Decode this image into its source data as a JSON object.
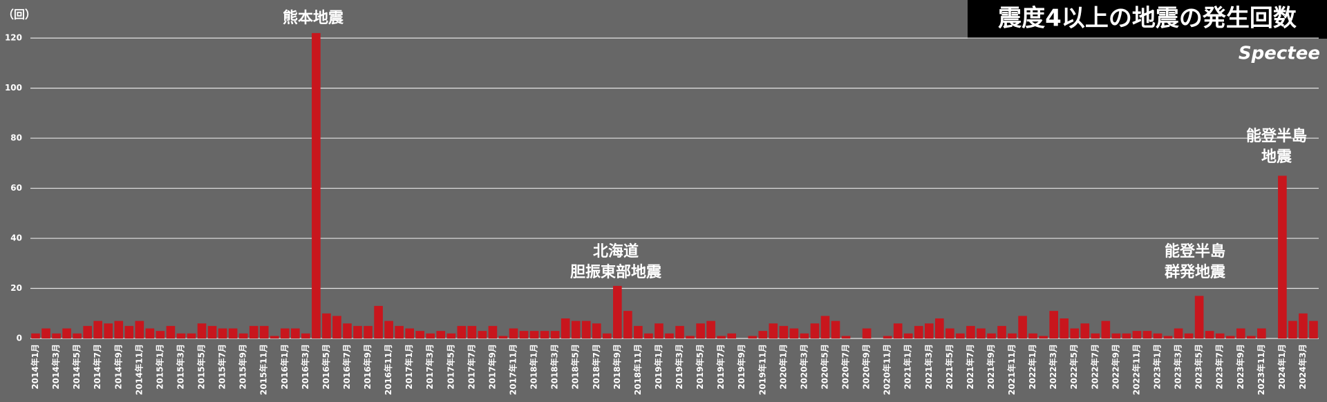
{
  "chart_data": {
    "type": "bar",
    "title": "震度4以上の地震の発生回数",
    "brand": "Spectee",
    "y_label": "（回）",
    "color": "#c8161d",
    "grid": true,
    "ylim": [
      0,
      125
    ],
    "yticks": [
      0,
      20,
      40,
      60,
      80,
      100,
      120
    ],
    "categories": [
      "2014年1月",
      null,
      "2014年3月",
      null,
      "2014年5月",
      null,
      "2014年7月",
      null,
      "2014年9月",
      null,
      "2014年11月",
      null,
      "2015年1月",
      null,
      "2015年3月",
      null,
      "2015年5月",
      null,
      "2015年7月",
      null,
      "2015年9月",
      null,
      "2015年11月",
      null,
      "2016年1月",
      null,
      "2016年3月",
      null,
      "2016年5月",
      null,
      "2016年7月",
      null,
      "2016年9月",
      null,
      "2016年11月",
      null,
      "2017年1月",
      null,
      "2017年3月",
      null,
      "2017年5月",
      null,
      "2017年7月",
      null,
      "2017年9月",
      null,
      "2017年11月",
      null,
      "2018年1月",
      null,
      "2018年3月",
      null,
      "2018年5月",
      null,
      "2018年7月",
      null,
      "2018年9月",
      null,
      "2018年11月",
      null,
      "2019年1月",
      null,
      "2019年3月",
      null,
      "2019年5月",
      null,
      "2019年7月",
      null,
      "2019年9月",
      null,
      "2019年11月",
      null,
      "2020年1月",
      null,
      "2020年3月",
      null,
      "2020年5月",
      null,
      "2020年7月",
      null,
      "2020年9月",
      null,
      "2020年11月",
      null,
      "2021年1月",
      null,
      "2021年3月",
      null,
      "2021年5月",
      null,
      "2021年7月",
      null,
      "2021年9月",
      null,
      "2021年11月",
      null,
      "2022年1月",
      null,
      "2022年3月",
      null,
      "2022年5月",
      null,
      "2022年7月",
      null,
      "2022年9月",
      null,
      "2022年11月",
      null,
      "2023年1月",
      null,
      "2023年3月",
      null,
      "2023年5月",
      null,
      "2023年7月",
      null,
      "2023年9月",
      null,
      "2023年11月",
      null,
      "2024年1月",
      null,
      "2024年3月",
      null
    ],
    "values": [
      2,
      4,
      2,
      4,
      2,
      5,
      7,
      6,
      7,
      5,
      7,
      4,
      3,
      5,
      2,
      2,
      6,
      5,
      4,
      4,
      2,
      5,
      5,
      1,
      4,
      4,
      2,
      122,
      10,
      9,
      6,
      5,
      5,
      13,
      7,
      5,
      4,
      3,
      2,
      3,
      2,
      5,
      5,
      3,
      5,
      1,
      4,
      3,
      3,
      3,
      3,
      8,
      7,
      7,
      6,
      2,
      21,
      11,
      5,
      2,
      6,
      2,
      5,
      1,
      6,
      7,
      1,
      2,
      0,
      1,
      3,
      6,
      5,
      4,
      2,
      6,
      9,
      7,
      1,
      0,
      4,
      0,
      1,
      6,
      2,
      5,
      6,
      8,
      4,
      2,
      5,
      4,
      2,
      5,
      2,
      9,
      2,
      1,
      11,
      8,
      4,
      6,
      2,
      7,
      2,
      2,
      3,
      3,
      2,
      1,
      4,
      2,
      17,
      3,
      2,
      1,
      4,
      1,
      4,
      0,
      65,
      7,
      10,
      7
    ],
    "annotations": [
      [
        "熊本地震"
      ],
      [
        "北海道",
        "胆振東部地震"
      ],
      [
        "能登半島",
        "群発地震"
      ],
      [
        "能登半島",
        "地震"
      ]
    ]
  }
}
